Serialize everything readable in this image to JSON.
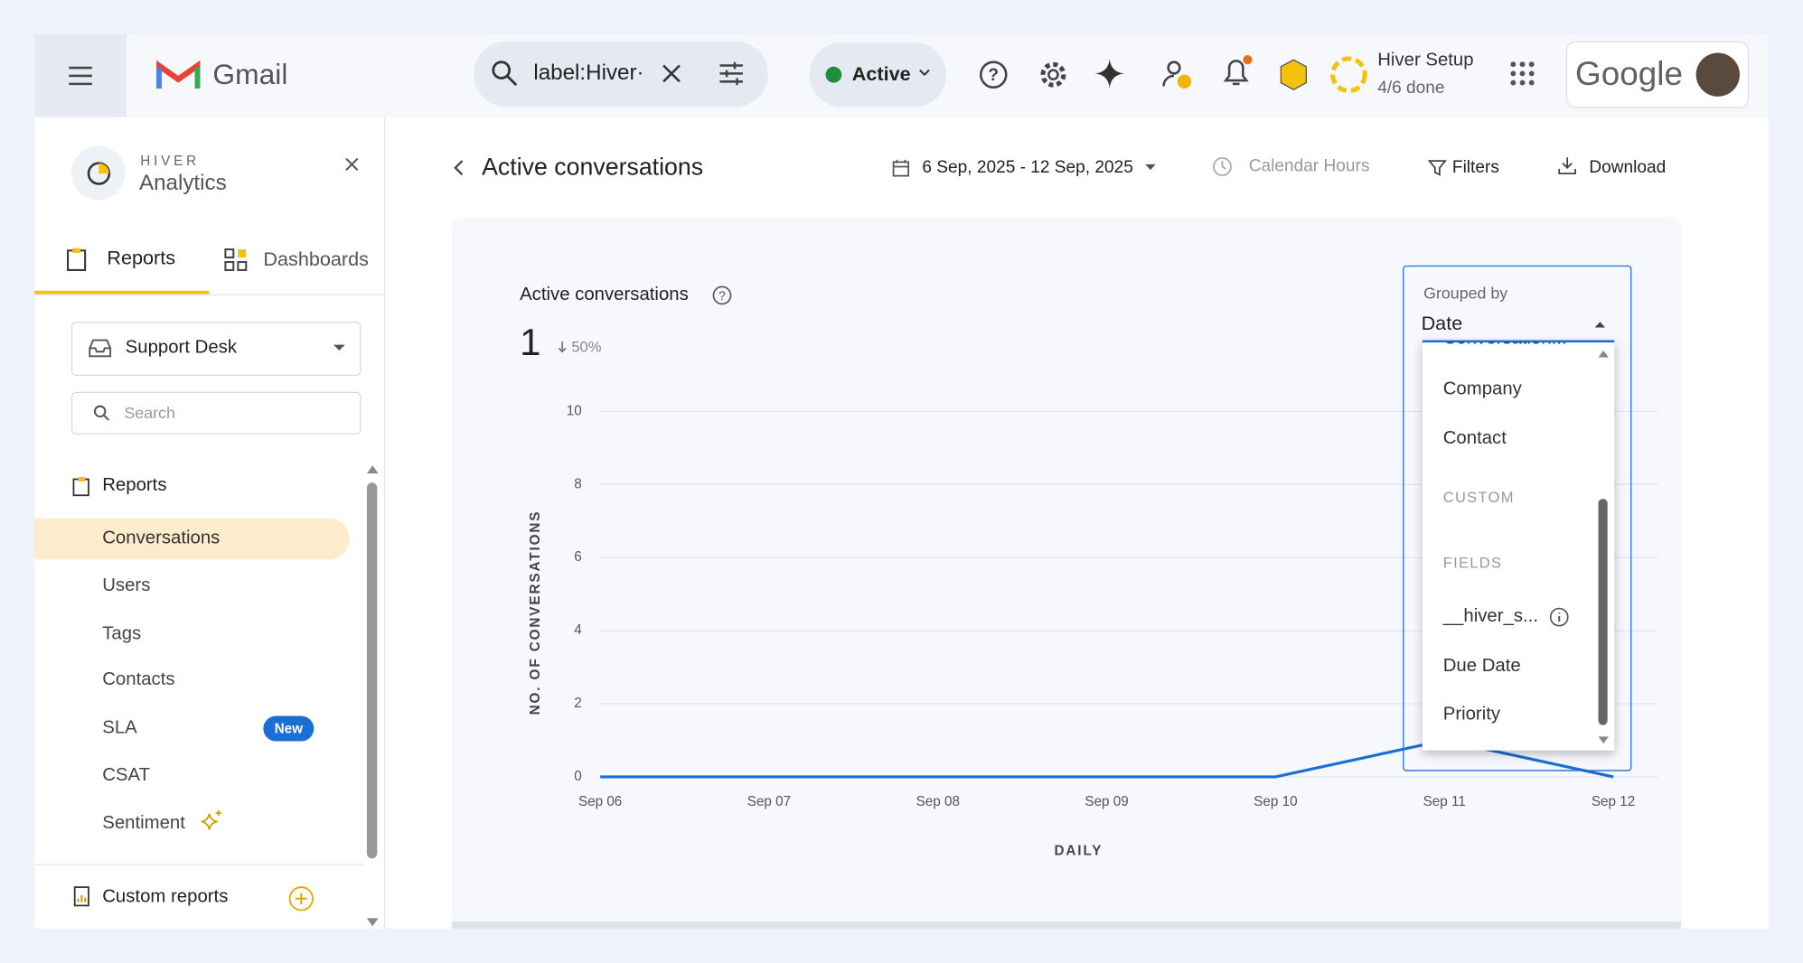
{
  "topbar": {
    "app": "Gmail",
    "search": "label:Hiver·",
    "status": "Active",
    "setup_title": "Hiver Setup",
    "setup_progress": "4/6 done",
    "brand": "Google"
  },
  "sidebar": {
    "brand": "HIVER",
    "title": "Analytics",
    "tabs": [
      "Reports",
      "Dashboards"
    ],
    "inbox": "Support Desk",
    "search_placeholder": "Search",
    "section": "Reports",
    "items": [
      "Conversations",
      "Users",
      "Tags",
      "Contacts",
      "SLA",
      "CSAT",
      "Sentiment"
    ],
    "badge": "New",
    "custom": "Custom reports"
  },
  "header": {
    "title": "Active conversations",
    "date_range": "6 Sep, 2025 - 12 Sep, 2025",
    "hours": "Calendar Hours",
    "filters": "Filters",
    "download": "Download"
  },
  "card": {
    "title": "Active conversations",
    "total": "1",
    "change": "50%"
  },
  "chart_data": {
    "type": "line",
    "x_label": "DAILY",
    "y_label": "NO. OF CONVERSATIONS",
    "categories": [
      "Sep 06",
      "Sep 07",
      "Sep 08",
      "Sep 09",
      "Sep 10",
      "Sep 11",
      "Sep 12"
    ],
    "values": [
      0,
      0,
      0,
      0,
      0,
      1,
      0
    ],
    "color": "#1a6fd6",
    "ylim": [
      0,
      10
    ],
    "yticks": [
      0,
      2,
      4,
      6,
      8,
      10
    ],
    "grid": true
  },
  "dropdown": {
    "label": "Grouped by",
    "selected": "Date",
    "options": [
      "Conversation...",
      "Company",
      "Contact"
    ],
    "group_headers": [
      "CUSTOM",
      "FIELDS"
    ],
    "custom_options": [
      "__hiver_s...",
      "Due Date",
      "Priority"
    ]
  }
}
